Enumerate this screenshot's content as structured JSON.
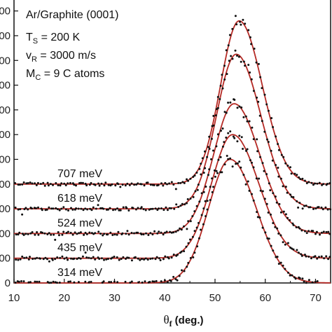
{
  "chart_data": {
    "type": "scatter",
    "title": "",
    "xlabel_symbol": "θ",
    "xlabel_sub": "f",
    "xlabel_rest": "(deg.)",
    "ylabel": "",
    "xlim": [
      10,
      73
    ],
    "ylim": [
      0,
      2300
    ],
    "x_ticks": [
      10,
      20,
      30,
      40,
      50,
      60,
      70
    ],
    "y_tick_labels": [
      "0",
      "00",
      "00",
      "00",
      "00",
      "00",
      "00",
      "00",
      "00",
      "00",
      "00",
      "00"
    ],
    "annotations": [
      {
        "main": "Ar/Graphite (0001)",
        "sub": "",
        "tail": ""
      },
      {
        "main": "T",
        "sub": "S",
        "tail": " = 200 K"
      },
      {
        "main": "v",
        "sub": "R",
        "tail": " = 3000 m/s"
      },
      {
        "main": "M",
        "sub": "C",
        "tail": " = 9 C atoms"
      }
    ],
    "series": [
      {
        "name": "314 meV",
        "baseline": 0,
        "peak_x": 53.0,
        "amplitude": 1000,
        "sigma_left": 4.3,
        "sigma_right": 5.2
      },
      {
        "name": "435 meV",
        "baseline": 200,
        "peak_x": 53.5,
        "amplitude": 1000,
        "sigma_left": 4.2,
        "sigma_right": 5.2
      },
      {
        "name": "524 meV",
        "baseline": 400,
        "peak_x": 53.8,
        "amplitude": 1050,
        "sigma_left": 4.1,
        "sigma_right": 5.1
      },
      {
        "name": "618 meV",
        "baseline": 600,
        "peak_x": 54.2,
        "amplitude": 1250,
        "sigma_left": 3.9,
        "sigma_right": 4.9
      },
      {
        "name": "707 meV",
        "baseline": 800,
        "peak_x": 54.8,
        "amplitude": 1320,
        "sigma_left": 3.7,
        "sigma_right": 4.6
      }
    ],
    "colors": {
      "fit_line": "#b52a25",
      "points": "#111111",
      "axis": "#111111"
    }
  }
}
